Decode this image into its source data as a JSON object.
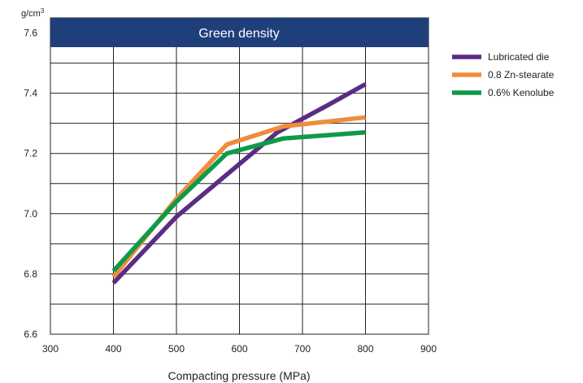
{
  "chart_data": {
    "type": "line",
    "title": "Green density",
    "xlabel": "Compacting pressure (MPa)",
    "ylabel_unit_base": "g/cm",
    "ylabel_unit_exp": "3",
    "xlim": [
      300,
      900
    ],
    "ylim": [
      6.6,
      7.65
    ],
    "xticks": [
      "300",
      "400",
      "500",
      "600",
      "700",
      "800",
      "900"
    ],
    "yticks": [
      "6.6",
      "6.8",
      "7.0",
      "7.2",
      "7.4",
      "7.6"
    ],
    "grid": true,
    "legend_position": "right",
    "series": [
      {
        "name": "Lubricated die",
        "color": "#5b2c83",
        "points": [
          [
            400,
            6.77
          ],
          [
            500,
            6.99
          ],
          [
            580,
            7.13
          ],
          [
            660,
            7.27
          ],
          [
            740,
            7.36
          ],
          [
            800,
            7.43
          ]
        ]
      },
      {
        "name": "0.8 Zn-stearate",
        "color": "#f08c3c",
        "points": [
          [
            400,
            6.79
          ],
          [
            500,
            7.05
          ],
          [
            580,
            7.23
          ],
          [
            670,
            7.29
          ],
          [
            800,
            7.32
          ]
        ]
      },
      {
        "name": "0.6% Kenolube",
        "color": "#0e9a48",
        "points": [
          [
            400,
            6.81
          ],
          [
            500,
            7.04
          ],
          [
            580,
            7.2
          ],
          [
            670,
            7.25
          ],
          [
            800,
            7.27
          ]
        ]
      }
    ]
  }
}
